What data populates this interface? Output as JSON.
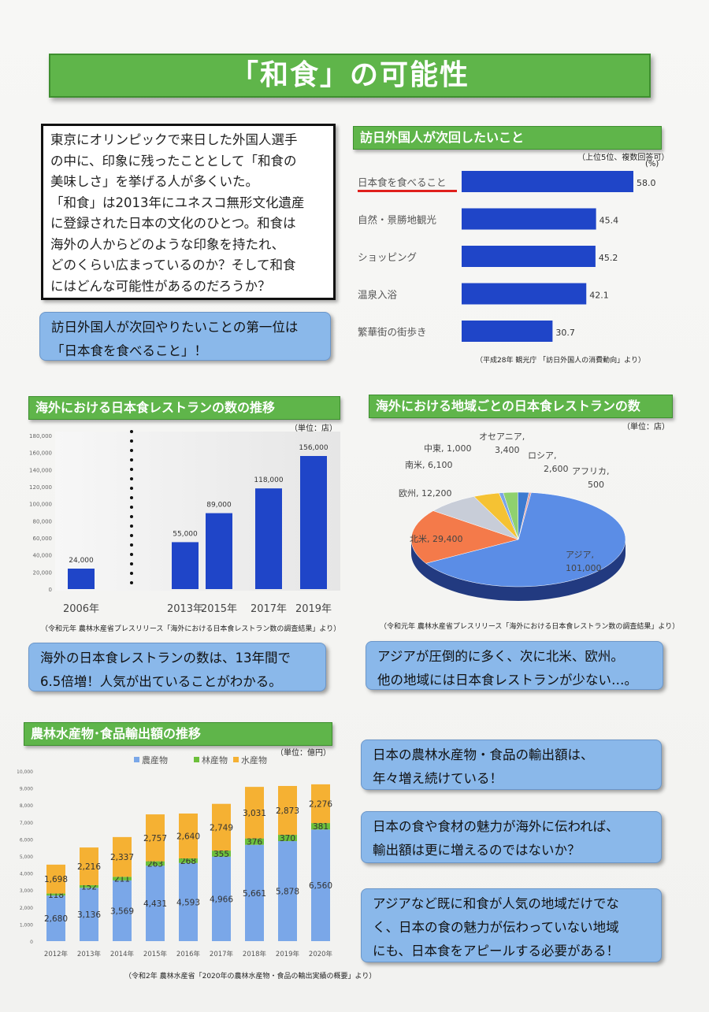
{
  "title": "「和食」の可能性",
  "intro": {
    "lines": [
      "東京にオリンピックで来日した外国人選手",
      "の中に、印象に残ったこととして「和食の",
      "美味しさ」を挙げる人が多くいた。",
      "「和食」は2013年にユネスコ無形文化遺産",
      "に登録された日本の文化のひとつ。和食は",
      "海外の人からどのような印象を持たれ、",
      "どのくらい広まっているのか？そして和食",
      "にはどんな可能性があるのだろうか？"
    ]
  },
  "bubbles": {
    "b1": "訪日外国人が次回やりたいことの第一位は\n「日本食を食べること」！",
    "b2": "海外の日本食レストランの数は、13年間で\n6.5倍増！人気が出ていることがわかる。",
    "b3": "アジアが圧倒的に多く、次に北米、欧州。\n他の地域には日本食レストランが少ない…。",
    "b4": "日本の農林水産物・食品の輸出額は、\n年々増え続けている！",
    "b5": "日本の食や食材の魅力が海外に伝われば、\n輸出額は更に増えるのではないか？",
    "b6": "アジアなど既に和食が人気の地域だけでな\nく、日本の食の魅力が伝わっていない地域\nにも、日本食をアピールする必要がある！"
  },
  "headings": {
    "h1": "訪日外国人が次回したいこと",
    "h2": "海外における日本食レストランの数の推移",
    "h3": "海外における地域ごとの日本食レストランの数",
    "h4": "農林水産物･食品輸出額の推移"
  },
  "notes": {
    "c1_unit": "（上位5位、複数回答可）",
    "c1_pct": "(%)",
    "c1_source": "（平成28年 観光庁 「訪日外国人の消費動向」より）",
    "c2_unit": "（単位：店）",
    "c2_source": "（令和元年 農林水産省プレスリリース「海外における日本食レストラン数の調査結果」より）",
    "c3_unit": "（単位：店）",
    "c3_source": "（令和元年 農林水産省プレスリリース「海外における日本食レストラン数の調査結果」より）",
    "c4_unit": "（単位：億円）",
    "c4_source": "（令和2年 農林水産省「2020年の農林水産物・食品の輸出実績の概要」より）"
  },
  "colors": {
    "green": "#5fb54a",
    "bar_blue": "#1f45c8",
    "bubble": "#8ab8ea",
    "underline": "#e0201c",
    "agri": "#7aa7e8",
    "forest": "#6cbf3a",
    "marine": "#f5b133"
  },
  "chart_data": [
    {
      "type": "bar",
      "orientation": "horizontal",
      "categories": [
        "日本食を食べること",
        "自然・景勝地観光",
        "ショッピング",
        "温泉入浴",
        "繁華街の街歩き"
      ],
      "values": [
        58.0,
        45.4,
        45.2,
        42.1,
        30.7
      ],
      "value_labels": [
        "58.0",
        "45.4",
        "45.2",
        "42.1",
        "30.7"
      ],
      "highlight": "日本食を食べること"
    },
    {
      "type": "bar",
      "categories": [
        "2006年",
        "2013年",
        "2015年",
        "2017年",
        "2019年"
      ],
      "values": [
        24000,
        55000,
        89000,
        118000,
        156000
      ],
      "value_labels": [
        "24,000",
        "55,000",
        "89,000",
        "118,000",
        "156,000"
      ],
      "yticks": [
        "0",
        "20,000",
        "40,000",
        "60,000",
        "80,000",
        "100,000",
        "120,000",
        "140,000",
        "160,000",
        "180,000"
      ],
      "ylim": [
        0,
        180000
      ]
    },
    {
      "type": "pie",
      "slices": [
        {
          "label": "アジア,",
          "label2": "101,000",
          "value": 101000,
          "color": "#5b8de6"
        },
        {
          "label": "北米, 29,400",
          "value": 29400,
          "color": "#f47a4a"
        },
        {
          "label": "欧州, 12,200",
          "value": 12200,
          "color": "#c8cdd8"
        },
        {
          "label": "南米, 6,100",
          "value": 6100,
          "color": "#f5c233"
        },
        {
          "label": "中東, 1,000",
          "value": 1000,
          "color": "#7ba5e8"
        },
        {
          "label": "オセアニア,",
          "label2": "3,400",
          "value": 3400,
          "color": "#8fd16e"
        },
        {
          "label": "ロシア,",
          "label2": "2,600",
          "value": 2600,
          "color": "#3c7ad0"
        },
        {
          "label": "アフリカ,",
          "label2": "500",
          "value": 500,
          "color": "#e0a0a0"
        }
      ]
    },
    {
      "type": "bar",
      "stacked": true,
      "categories": [
        "2012年",
        "2013年",
        "2014年",
        "2015年",
        "2016年",
        "2017年",
        "2018年",
        "2019年",
        "2020年"
      ],
      "series": [
        {
          "name": "農産物",
          "values": [
            2680,
            3136,
            3569,
            4431,
            4593,
            4966,
            5661,
            5878,
            6560
          ]
        },
        {
          "name": "林産物",
          "values": [
            118,
            152,
            211,
            263,
            268,
            355,
            376,
            370,
            381
          ]
        },
        {
          "name": "水産物",
          "values": [
            1698,
            2216,
            2337,
            2757,
            2640,
            2749,
            3031,
            2873,
            2276
          ]
        }
      ],
      "value_labels": [
        [
          "2,680",
          "3,136",
          "3,569",
          "4,431",
          "4,593",
          "4,966",
          "5,661",
          "5,878",
          "6,560"
        ],
        [
          "118",
          "152",
          "211",
          "263",
          "268",
          "355",
          "376",
          "370",
          "381"
        ],
        [
          "1,698",
          "2,216",
          "2,337",
          "2,757",
          "2,640",
          "2,749",
          "3,031",
          "2,873",
          "2,276"
        ]
      ],
      "yticks": [
        "0",
        "1,000",
        "2,000",
        "3,000",
        "4,000",
        "5,000",
        "6,000",
        "7,000",
        "8,000",
        "9,000",
        "10,000"
      ],
      "ylim": [
        0,
        10000
      ],
      "legend": "top"
    }
  ]
}
